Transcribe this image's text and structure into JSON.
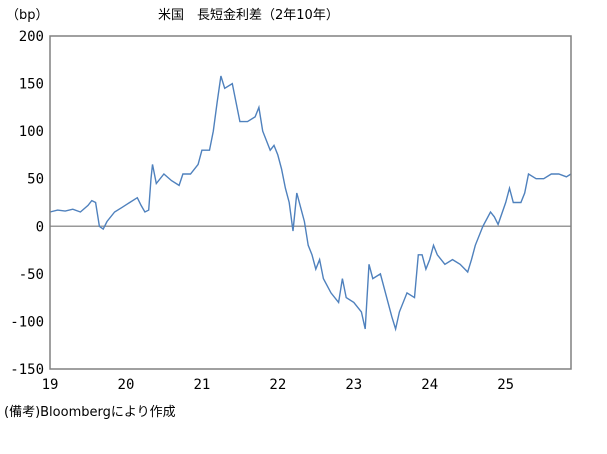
{
  "chart_data": {
    "type": "line",
    "title": "米国　長短金利差（2年10年）",
    "ylabel": "（bp）",
    "xlabel": "",
    "note": "(備考)Bloombergにより作成",
    "ylim": [
      -150,
      200
    ],
    "yticks": [
      200,
      150,
      100,
      50,
      0,
      -50,
      -100,
      -150
    ],
    "xlim": [
      2019,
      2025.86
    ],
    "xticks": [
      {
        "value": 2019,
        "label": "19"
      },
      {
        "value": 2020,
        "label": "20"
      },
      {
        "value": 2021,
        "label": "21"
      },
      {
        "value": 2022,
        "label": "22"
      },
      {
        "value": 2023,
        "label": "23"
      },
      {
        "value": 2024,
        "label": "24"
      },
      {
        "value": 2025,
        "label": "25"
      }
    ],
    "grid": false,
    "zero_line": true,
    "colors": {
      "line": "#4f81bd",
      "zero_line": "#999999",
      "frame": "#808080"
    },
    "x": [
      2019.0,
      2019.1,
      2019.2,
      2019.3,
      2019.4,
      2019.5,
      2019.55,
      2019.6,
      2019.65,
      2019.7,
      2019.75,
      2019.85,
      2019.95,
      2020.05,
      2020.15,
      2020.2,
      2020.25,
      2020.3,
      2020.33,
      2020.35,
      2020.4,
      2020.5,
      2020.6,
      2020.7,
      2020.75,
      2020.85,
      2020.95,
      2021.0,
      2021.1,
      2021.15,
      2021.2,
      2021.25,
      2021.3,
      2021.4,
      2021.45,
      2021.5,
      2021.6,
      2021.7,
      2021.75,
      2021.8,
      2021.9,
      2021.95,
      2022.0,
      2022.05,
      2022.1,
      2022.15,
      2022.2,
      2022.25,
      2022.3,
      2022.35,
      2022.4,
      2022.45,
      2022.5,
      2022.55,
      2022.6,
      2022.7,
      2022.8,
      2022.85,
      2022.9,
      2023.0,
      2023.1,
      2023.15,
      2023.2,
      2023.25,
      2023.35,
      2023.45,
      2023.5,
      2023.55,
      2023.6,
      2023.7,
      2023.8,
      2023.85,
      2023.9,
      2023.95,
      2024.0,
      2024.05,
      2024.1,
      2024.2,
      2024.3,
      2024.4,
      2024.5,
      2024.55,
      2024.6,
      2024.7,
      2024.8,
      2024.85,
      2024.9,
      2025.0,
      2025.05,
      2025.1,
      2025.2,
      2025.25,
      2025.3,
      2025.4,
      2025.5,
      2025.6,
      2025.7,
      2025.8,
      2025.86
    ],
    "values": [
      15,
      17,
      16,
      18,
      15,
      22,
      27,
      25,
      0,
      -3,
      5,
      15,
      20,
      25,
      30,
      22,
      15,
      17,
      50,
      65,
      45,
      55,
      48,
      43,
      55,
      55,
      65,
      80,
      80,
      100,
      130,
      158,
      145,
      150,
      130,
      110,
      110,
      115,
      125,
      100,
      80,
      85,
      75,
      60,
      40,
      25,
      -5,
      35,
      20,
      5,
      -20,
      -30,
      -45,
      -35,
      -55,
      -70,
      -80,
      -55,
      -75,
      -80,
      -90,
      -108,
      -40,
      -55,
      -50,
      -80,
      -95,
      -108,
      -90,
      -70,
      -75,
      -30,
      -30,
      -45,
      -35,
      -20,
      -30,
      -40,
      -35,
      -40,
      -48,
      -35,
      -20,
      0,
      15,
      10,
      2,
      25,
      40,
      25,
      25,
      35,
      55,
      50,
      50,
      55,
      55,
      52,
      55
    ]
  }
}
